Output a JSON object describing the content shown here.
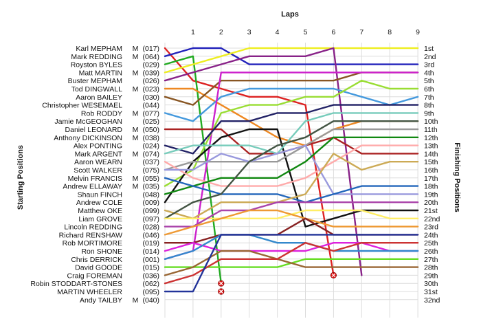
{
  "chart_data": {
    "type": "line",
    "title": "Laps",
    "ylabel_left": "Starting Positions",
    "ylabel_right": "Finishing Positions",
    "laps": [
      1,
      2,
      3,
      4,
      5,
      6,
      7,
      8,
      9
    ],
    "ylim": [
      1,
      32
    ],
    "grid": true,
    "starting_grid": [
      {
        "name": "Karl MEPHAM",
        "cls": "M",
        "num": "(017)"
      },
      {
        "name": "Mark REDDING",
        "cls": "M",
        "num": "(064)"
      },
      {
        "name": "Royston BYLES",
        "cls": "",
        "num": "(029)"
      },
      {
        "name": "Matt MARTIN",
        "cls": "M",
        "num": "(039)"
      },
      {
        "name": "Buster MEPHAM",
        "cls": "",
        "num": "(026)"
      },
      {
        "name": "Tod DINGWALL",
        "cls": "M",
        "num": "(023)"
      },
      {
        "name": "Aaron BAILEY",
        "cls": "",
        "num": "(030)"
      },
      {
        "name": "Christopher WESEMAEL",
        "cls": "",
        "num": "(044)"
      },
      {
        "name": "Rob RODDY",
        "cls": "M",
        "num": "(077)"
      },
      {
        "name": "Jamie McGEOGHAN",
        "cls": "",
        "num": "(025)"
      },
      {
        "name": "Daniel LEONARD",
        "cls": "M",
        "num": "(050)"
      },
      {
        "name": "Anthony DICKINSON",
        "cls": "M",
        "num": "(038)"
      },
      {
        "name": "Alex PONTING",
        "cls": "",
        "num": "(024)"
      },
      {
        "name": "Mark ARGENT",
        "cls": "M",
        "num": "(074)"
      },
      {
        "name": "Aaron WEARN",
        "cls": "",
        "num": "(037)"
      },
      {
        "name": "Scott WALKER",
        "cls": "",
        "num": "(075)"
      },
      {
        "name": "Melvin FRANCIS",
        "cls": "M",
        "num": "(055)"
      },
      {
        "name": "Andrew ELLAWAY",
        "cls": "M",
        "num": "(035)"
      },
      {
        "name": "Shaun FINCH",
        "cls": "",
        "num": "(048)"
      },
      {
        "name": "Andrew COLE",
        "cls": "",
        "num": "(009)"
      },
      {
        "name": "Matthew OKE",
        "cls": "",
        "num": "(099)"
      },
      {
        "name": "Liam GROVE",
        "cls": "",
        "num": "(097)"
      },
      {
        "name": "Lincoln REDDING",
        "cls": "",
        "num": "(028)"
      },
      {
        "name": "Richard RENSHAW",
        "cls": "",
        "num": "(046)"
      },
      {
        "name": "Rob MORTIMORE",
        "cls": "",
        "num": "(019)"
      },
      {
        "name": "Ron SHONE",
        "cls": "",
        "num": "(014)"
      },
      {
        "name": "Chris DERRICK",
        "cls": "",
        "num": "(001)"
      },
      {
        "name": "David GOODE",
        "cls": "",
        "num": "(015)"
      },
      {
        "name": "Craig FOREMAN",
        "cls": "",
        "num": "(036)"
      },
      {
        "name": "Robin STODDART-STONES",
        "cls": "",
        "num": "(062)"
      },
      {
        "name": "MARTIN WHEELER",
        "cls": "",
        "num": "(095)"
      },
      {
        "name": "Andy TAILBY",
        "cls": "M",
        "num": "(040)"
      }
    ],
    "finishing_labels": [
      "1st",
      "2nd",
      "3rd",
      "4th",
      "5th",
      "6th",
      "7th",
      "8th",
      "9th",
      "10th",
      "11th",
      "12th",
      "13th",
      "14th",
      "15th",
      "16th",
      "17th",
      "18th",
      "19th",
      "20th",
      "21st",
      "22nd",
      "23rd",
      "24th",
      "25th",
      "26th",
      "27th",
      "28th",
      "29th",
      "30th",
      "31st",
      "32nd"
    ],
    "series": [
      {
        "color": "#dd2222",
        "positions": [
          1,
          5,
          6,
          7,
          7,
          8,
          29
        ]
      },
      {
        "color": "#2222bb",
        "positions": [
          2,
          1,
          1,
          3,
          3,
          3,
          3,
          3,
          3,
          3
        ]
      },
      {
        "color": "#22aa22",
        "positions": [
          3,
          2,
          30
        ]
      },
      {
        "color": "#eeee22",
        "positions": [
          4,
          3,
          2,
          1,
          1,
          1,
          1,
          1,
          1,
          1
        ]
      },
      {
        "color": "#882288",
        "positions": [
          5,
          4,
          3,
          2,
          2,
          2,
          1,
          29
        ]
      },
      {
        "color": "#ee8822",
        "positions": [
          6,
          6,
          8,
          10,
          12,
          13,
          11,
          10,
          10,
          10
        ]
      },
      {
        "color": "#4499dd",
        "positions": [
          9,
          10,
          7,
          6,
          6,
          6,
          6,
          7,
          8,
          7
        ]
      },
      {
        "color": "#885522",
        "positions": [
          7,
          8,
          5,
          5,
          5,
          5,
          5,
          4,
          4,
          4
        ]
      },
      {
        "color": "#cc22cc",
        "positions": [
          27,
          26,
          4,
          4,
          4,
          4,
          4,
          4,
          4,
          4
        ]
      },
      {
        "color": "#99dd33",
        "positions": [
          18,
          16,
          9,
          8,
          8,
          7,
          7,
          5,
          6,
          6
        ]
      },
      {
        "color": "#aa2222",
        "positions": [
          11,
          11,
          11,
          14,
          14,
          13,
          12,
          14,
          14,
          14
        ]
      },
      {
        "color": "#111111",
        "positions": [
          20,
          15,
          12,
          11,
          11,
          23,
          22,
          21,
          21,
          21
        ]
      },
      {
        "color": "#999999",
        "positions": [
          16,
          15,
          15,
          15,
          15,
          13,
          11,
          11,
          11,
          11
        ]
      },
      {
        "color": "#222266",
        "positions": [
          13,
          14,
          10,
          10,
          9,
          9,
          8,
          8,
          8,
          8
        ]
      },
      {
        "color": "#77ccbb",
        "positions": [
          14,
          13,
          13,
          13,
          14,
          10,
          9,
          9,
          9,
          9
        ]
      },
      {
        "color": "#ffaaaa",
        "positions": [
          15,
          17,
          18,
          18,
          18,
          17,
          15,
          13,
          13,
          13
        ]
      },
      {
        "color": "#9999dd",
        "positions": [
          16,
          16,
          14,
          15,
          14,
          13,
          19,
          19,
          19,
          19
        ]
      },
      {
        "color": "#118811",
        "positions": [
          19,
          18,
          17,
          17,
          17,
          15,
          12,
          12,
          12,
          12
        ]
      },
      {
        "color": "#2266bb",
        "positions": [
          17,
          18,
          19,
          19,
          19,
          20,
          19,
          18,
          18,
          18
        ]
      },
      {
        "color": "#ccaa55",
        "positions": [
          21,
          22,
          20,
          20,
          20,
          19,
          14,
          16,
          15,
          15
        ]
      },
      {
        "color": "#445544",
        "positions": [
          22,
          20,
          19,
          15,
          13,
          12,
          10,
          10,
          10,
          10
        ]
      },
      {
        "color": "#ffee66",
        "positions": [
          22,
          22,
          22,
          22,
          22,
          21,
          21,
          21,
          22,
          22
        ]
      },
      {
        "color": "#aa44aa",
        "positions": [
          23,
          23,
          21,
          21,
          20,
          20,
          20,
          20,
          20,
          20
        ]
      },
      {
        "color": "#ee9933",
        "positions": [
          24,
          23,
          22,
          21,
          21,
          22,
          23,
          23,
          23,
          23
        ]
      },
      {
        "color": "#882222",
        "positions": [
          25,
          25,
          24,
          24,
          24,
          22,
          24,
          24,
          24,
          24
        ]
      },
      {
        "color": "#dd22dd",
        "positions": [
          26,
          25,
          26,
          26,
          26,
          26,
          25,
          25,
          26,
          26
        ]
      },
      {
        "color": "#3388cc",
        "positions": [
          27,
          26,
          24,
          24,
          25,
          25,
          26,
          26,
          26,
          26
        ]
      },
      {
        "color": "#66dd22",
        "positions": [
          28,
          28,
          28,
          28,
          28,
          27,
          27,
          27,
          27,
          27
        ]
      },
      {
        "color": "#996633",
        "positions": [
          29,
          28,
          26,
          26,
          27,
          28,
          28,
          28,
          28,
          28
        ]
      },
      {
        "color": "#cc3333",
        "positions": [
          30,
          29,
          27,
          27,
          27,
          25,
          26,
          25,
          25,
          25
        ]
      },
      {
        "color": "#223399",
        "positions": [
          31,
          31,
          24,
          24,
          24,
          24,
          24,
          24,
          24,
          24
        ]
      }
    ],
    "retirements": [
      {
        "lap": 2,
        "position": 30
      },
      {
        "lap": 2,
        "position": 31
      },
      {
        "lap": 6,
        "position": 29
      }
    ]
  }
}
